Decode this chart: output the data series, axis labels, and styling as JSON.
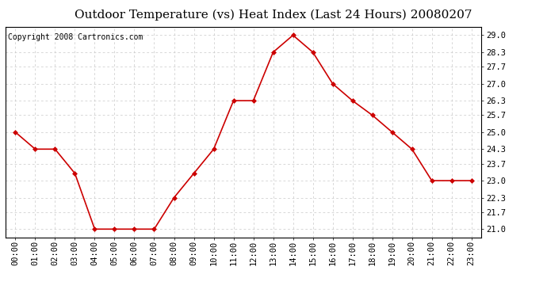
{
  "title": "Outdoor Temperature (vs) Heat Index (Last 24 Hours) 20080207",
  "copyright": "Copyright 2008 Cartronics.com",
  "x_labels": [
    "00:00",
    "01:00",
    "02:00",
    "03:00",
    "04:00",
    "05:00",
    "06:00",
    "07:00",
    "08:00",
    "09:00",
    "10:00",
    "11:00",
    "12:00",
    "13:00",
    "14:00",
    "15:00",
    "16:00",
    "17:00",
    "18:00",
    "19:00",
    "20:00",
    "21:00",
    "22:00",
    "23:00"
  ],
  "y_values": [
    25.0,
    24.3,
    24.3,
    23.3,
    21.0,
    21.0,
    21.0,
    21.0,
    22.3,
    23.3,
    24.3,
    26.3,
    26.3,
    28.3,
    29.0,
    28.3,
    27.0,
    26.3,
    25.7,
    25.0,
    24.3,
    23.0,
    23.0,
    23.0
  ],
  "y_ticks": [
    21.0,
    21.7,
    22.3,
    23.0,
    23.7,
    24.3,
    25.0,
    25.7,
    26.3,
    27.0,
    27.7,
    28.3,
    29.0
  ],
  "ylim": [
    20.65,
    29.35
  ],
  "line_color": "#cc0000",
  "marker": "D",
  "marker_size": 3,
  "bg_color": "#ffffff",
  "grid_color": "#c8c8c8",
  "title_fontsize": 11,
  "copyright_fontsize": 7,
  "tick_fontsize": 7.5
}
